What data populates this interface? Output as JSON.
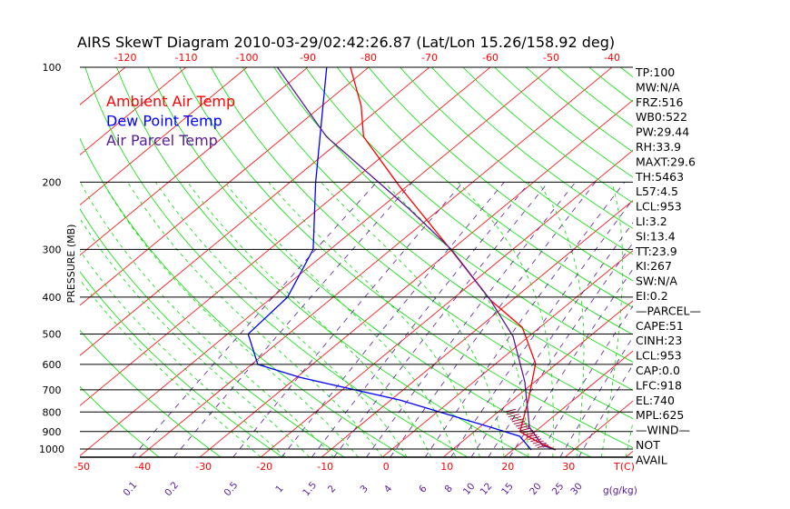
{
  "chart_data": {
    "type": "line",
    "title": "AIRS SkewT Diagram 2010-03-29/02:42:26.87 (Lat/Lon 15.26/158.92 deg)",
    "ylabel": "PRESSURE (MB)",
    "xlabel": "T(C)",
    "mixing_label": "g(g/kg)",
    "ylim": [
      1050,
      100
    ],
    "pressure_ticks": [
      100,
      200,
      300,
      400,
      500,
      600,
      700,
      800,
      900,
      1000
    ],
    "top_temp_ticks": [
      -120,
      -110,
      -100,
      -90,
      -80,
      -70,
      -60,
      -50,
      -40
    ],
    "bottom_temp_ticks": [
      -50,
      -40,
      -30,
      -20,
      -10,
      0,
      10,
      20,
      30
    ],
    "mixing_ratio_ticks": [
      "0.1",
      "0.2",
      "0.5",
      "1",
      "1.5",
      "2",
      "3",
      "4",
      "6",
      "8",
      "10",
      "12",
      "15",
      "20",
      "25",
      "30"
    ],
    "legend": [
      {
        "name": "Ambient Air Temp",
        "color": "#ff0000"
      },
      {
        "name": "Dew Point Temp",
        "color": "#0000ff"
      },
      {
        "name": "Air Parcel Temp",
        "color": "#5a1a9a"
      }
    ],
    "series": [
      {
        "name": "Ambient Air Temp",
        "color": "#ff0000",
        "p": [
          1005,
          952,
          900,
          744,
          597,
          480,
          407,
          309,
          205,
          152,
          126,
          100
        ],
        "t": [
          27.0,
          22.0,
          17.5,
          12.6,
          6.5,
          -2.9,
          -13.6,
          -28.6,
          -51.2,
          -67.0,
          -73.6,
          -83.0
        ]
      },
      {
        "name": "Dew Point Temp",
        "color": "#0000ff",
        "p": [
          1005,
          926,
          877,
          744,
          649,
          600,
          500,
          400,
          300,
          200,
          100
        ],
        "t": [
          23.0,
          18.4,
          11.8,
          -8.6,
          -29.5,
          -39.0,
          -46.6,
          -47.5,
          -52.8,
          -65.8,
          -86.9
        ]
      },
      {
        "name": "Air Parcel Temp",
        "color": "#5a1a9a",
        "p": [
          1005,
          979,
          877,
          667,
          507,
          407,
          300,
          235,
          152,
          100
        ],
        "t": [
          27.0,
          24.0,
          18.2,
          8.4,
          -2.6,
          -13.6,
          -30.1,
          -45.1,
          -73.1,
          -95.0
        ]
      }
    ],
    "grid_colors": {
      "isotherm": "#ff0000",
      "dry_adiabat": "#00dd00",
      "moist_adiabat": "#00dd00",
      "mixing_ratio": "#5a1a9a",
      "isobar": "#000000"
    }
  },
  "side_panel": [
    "TP:100",
    "MW:N/A",
    "FRZ:516",
    "WB0:522",
    "PW:29.44",
    "RH:33.9",
    "MAXT:29.6",
    "TH:5463",
    "L57:4.5",
    "LCL:953",
    "LI:3.2",
    "SI:13.4",
    "TT:23.9",
    "KI:267",
    "SW:N/A",
    "EI:0.2",
    "—PARCEL—",
    "CAPE:51",
    "CINH:23",
    "LCL:953",
    "CAP:0.0",
    "LFC:918",
    "EL:740",
    "MPL:625",
    "—WIND—",
    "NOT",
    "AVAIL"
  ]
}
